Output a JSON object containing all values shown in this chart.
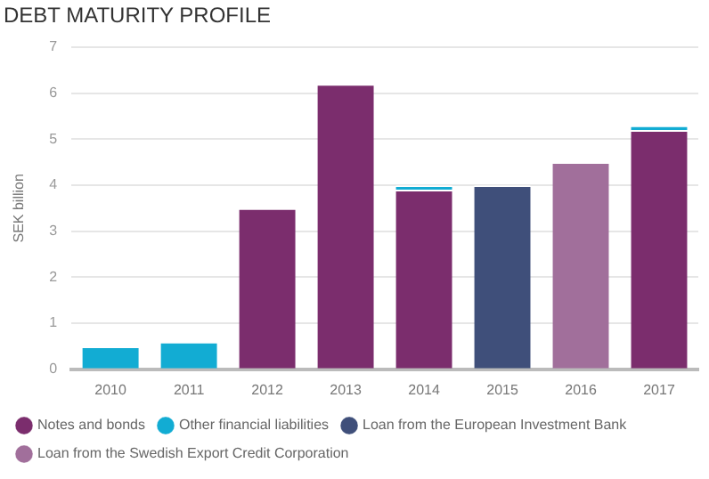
{
  "chart_data": {
    "type": "bar",
    "title": "DEBT MATURITY PROFILE",
    "ylabel": "SEK billion",
    "stacked": true,
    "categories": [
      "2010",
      "2011",
      "2012",
      "2013",
      "2014",
      "2015",
      "2016",
      "2017"
    ],
    "series": [
      {
        "name": "Notes and bonds",
        "color": "#7b2d6d",
        "values": [
          null,
          null,
          3.5,
          6.2,
          3.9,
          null,
          null,
          5.2
        ]
      },
      {
        "name": "Other financial liabilities",
        "color": "#12acd3",
        "values": [
          0.5,
          0.6,
          null,
          null,
          0.1,
          null,
          null,
          0.1
        ]
      },
      {
        "name": "Loan from the European Investment Bank",
        "color": "#3f4f7a",
        "values": [
          null,
          null,
          null,
          null,
          null,
          4.0,
          null,
          null
        ]
      },
      {
        "name": "Loan from the Swedish Export Credit Corporation",
        "color": "#a16f9b",
        "values": [
          null,
          null,
          null,
          null,
          null,
          null,
          4.5,
          null
        ]
      }
    ],
    "ylim": [
      0,
      7
    ],
    "yticks": [
      0,
      1,
      2,
      3,
      4,
      5,
      6,
      7
    ],
    "grid": "y",
    "legend": "bottom"
  }
}
